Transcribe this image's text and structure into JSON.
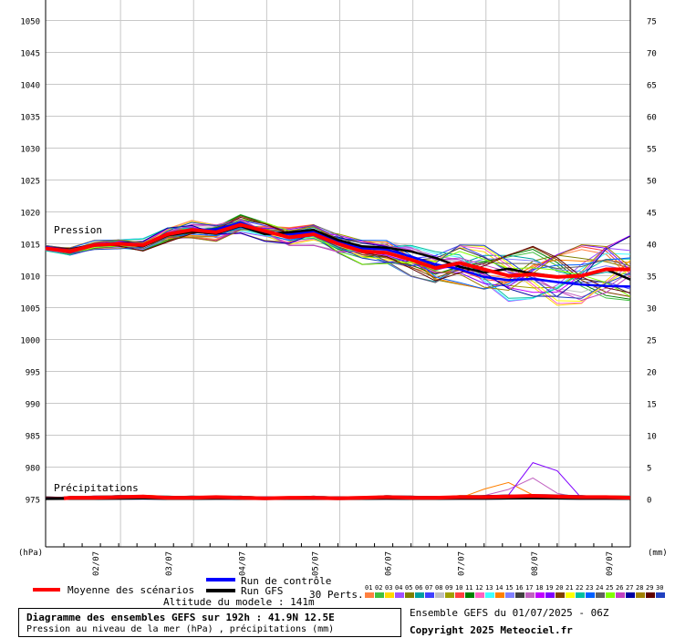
{
  "chart_data": {
    "type": "line",
    "pressure_axis": {
      "unit_label": "(hPa)",
      "ticks": [
        975,
        980,
        985,
        990,
        995,
        1000,
        1005,
        1010,
        1015,
        1020,
        1025,
        1030,
        1035,
        1040,
        1045,
        1050
      ],
      "ylim": [
        975,
        1050
      ]
    },
    "precip_axis": {
      "unit_label": "(mm)",
      "ticks": [
        0,
        5,
        10,
        15,
        20,
        25,
        30,
        35,
        40,
        45,
        50,
        55,
        60,
        65,
        70,
        75
      ],
      "ylim": [
        0,
        75
      ]
    },
    "x_ticks": [
      "02/07",
      "03/07",
      "04/07",
      "05/07",
      "06/07",
      "07/07",
      "08/07",
      "09/07"
    ],
    "x_hours": [
      0,
      6,
      12,
      18,
      24,
      30,
      36,
      42,
      48,
      54,
      60,
      66,
      72,
      78,
      84,
      90,
      96,
      102,
      108,
      114,
      120,
      126,
      132,
      138,
      144,
      150,
      156,
      162,
      168,
      174,
      180,
      186,
      192
    ],
    "grid": true,
    "annotations": {
      "pressure": "Pression",
      "precip": "Précipitations"
    },
    "mean_series": {
      "name": "Moyenne des scénarios",
      "color": "#ff0000",
      "pressure": [
        1014.3,
        1013.8,
        1014.8,
        1015.0,
        1014.8,
        1016.5,
        1017.2,
        1016.8,
        1018.0,
        1017.0,
        1016.0,
        1016.5,
        1015.0,
        1013.8,
        1013.6,
        1012.5,
        1011.2,
        1012.0,
        1011.0,
        1010.0,
        1010.2,
        1009.8,
        1010.0,
        1011.0,
        1011.0
      ],
      "precip": [
        0.1,
        0.2,
        0.2,
        0.3,
        0.4,
        0.2,
        0.2,
        0.3,
        0.2,
        0.1,
        0.2,
        0.2,
        0.1,
        0.2,
        0.3,
        0.2,
        0.2,
        0.3,
        0.3,
        0.4,
        0.5,
        0.4,
        0.3,
        0.3,
        0.2
      ]
    },
    "control_series": {
      "name": "Run de contrôle",
      "color": "#0000ff",
      "pressure": [
        1014.5,
        1013.9,
        1014.9,
        1015.1,
        1014.8,
        1016.6,
        1017.0,
        1017.3,
        1018.3,
        1016.8,
        1016.5,
        1016.9,
        1015.4,
        1014.3,
        1014.1,
        1013.0,
        1011.8,
        1011.0,
        1009.8,
        1009.3,
        1009.5,
        1009.0,
        1008.6,
        1008.4,
        1008.3
      ]
    },
    "gfs_series": {
      "name": "Run GFS",
      "color": "#000000",
      "pressure": [
        1014.4,
        1013.7,
        1014.7,
        1015.0,
        1014.6,
        1016.3,
        1016.9,
        1016.6,
        1017.8,
        1016.5,
        1016.8,
        1017.2,
        1015.6,
        1014.6,
        1014.4,
        1013.8,
        1012.8,
        1011.4,
        1010.5,
        1011.1,
        1010.3,
        1009.8,
        1010.0,
        1011.0,
        1009.4
      ]
    },
    "perturbations": {
      "label": "30 Perts.",
      "numbers": [
        "01",
        "02",
        "03",
        "04",
        "05",
        "06",
        "07",
        "08",
        "09",
        "10",
        "11",
        "12",
        "13",
        "14",
        "15",
        "16",
        "17",
        "18",
        "19",
        "20",
        "21",
        "22",
        "23",
        "24",
        "25",
        "26",
        "27",
        "28",
        "29",
        "30"
      ],
      "colors": [
        "#ff8040",
        "#40c040",
        "#ffd700",
        "#a050ff",
        "#808000",
        "#00a0a0",
        "#4040ff",
        "#c0c0c0",
        "#a0a000",
        "#ff4040",
        "#008000",
        "#ff60c0",
        "#40ffff",
        "#ff8000",
        "#8080ff",
        "#404040",
        "#c060c0",
        "#c000ff",
        "#8000ff",
        "#804000",
        "#ffff00",
        "#00c0a0",
        "#0060ff",
        "#606060",
        "#80ff00",
        "#c040c0",
        "#0000a0",
        "#a08000",
        "#600000",
        "#2040c0"
      ],
      "spread": [
        0.3,
        0.5,
        0.5,
        0.6,
        0.7,
        0.9,
        1.0,
        1.0,
        1.1,
        1.1,
        1.1,
        1.2,
        1.3,
        1.4,
        1.6,
        1.8,
        2.0,
        2.3,
        2.6,
        2.8,
        3.0,
        3.2,
        3.3,
        3.4,
        3.6
      ],
      "precip_peaks": [
        {
          "member": 19,
          "x": 163,
          "value": 7.6
        },
        {
          "member": 14,
          "x": 150,
          "value": 3.1
        },
        {
          "member": 17,
          "x": 159,
          "value": 3.6
        }
      ]
    },
    "legend": {
      "mean": "Moyenne des scénarios",
      "control": "Run de contrôle",
      "gfs": "Run GFS"
    },
    "altitude": "Altitude du modele : 141m"
  },
  "footer": {
    "title": "Diagramme des ensembles GEFS sur 192h : 41.9N 12.5E",
    "subtitle": "Pression au niveau de la mer (hPa) , précipitations (mm)",
    "ensemble_run": "Ensemble GEFS du 01/07/2025 - 06Z",
    "copyright": "Copyright 2025 Meteociel.fr"
  }
}
